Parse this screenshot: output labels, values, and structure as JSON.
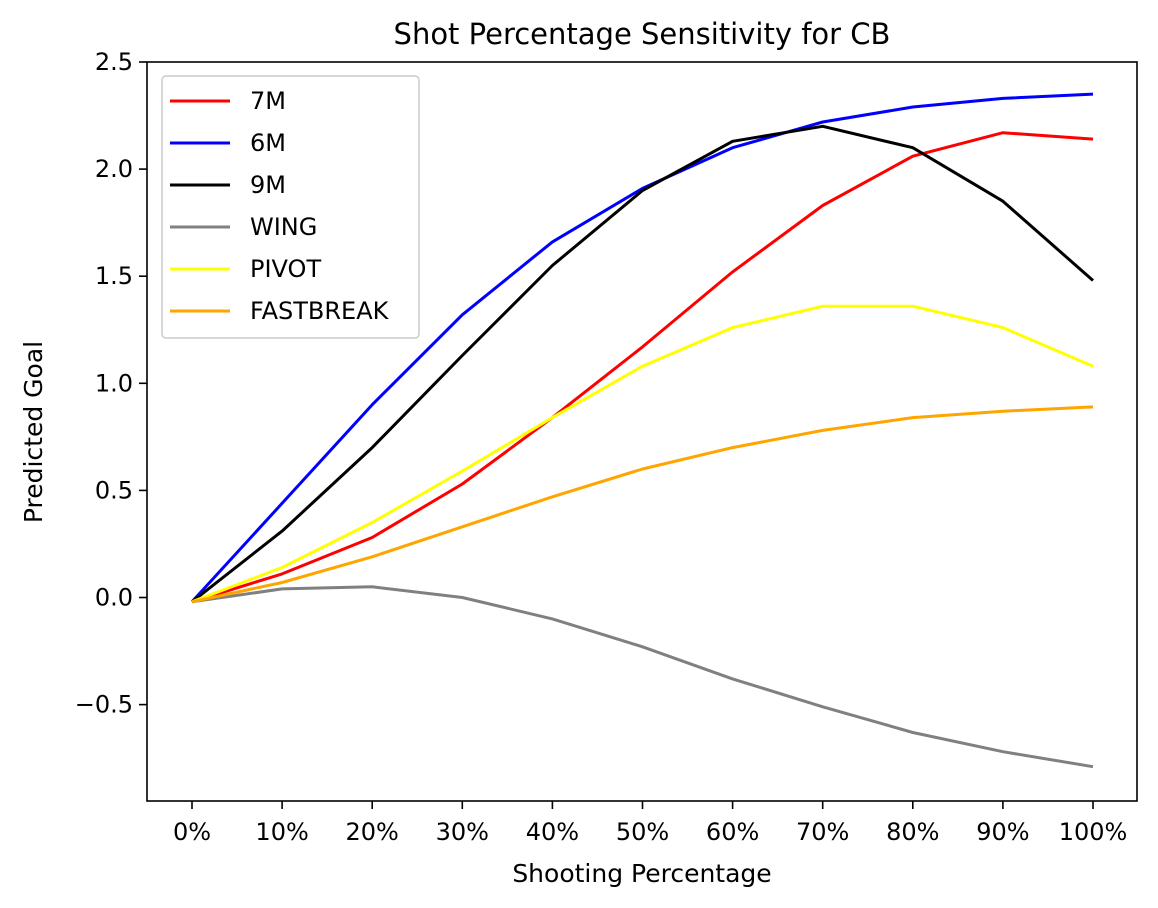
{
  "chart_data": {
    "type": "line",
    "title": "Shot Percentage Sensitivity for CB",
    "xlabel": "Shooting Percentage",
    "ylabel": "Predicted Goal",
    "categories": [
      "0%",
      "10%",
      "20%",
      "30%",
      "40%",
      "50%",
      "60%",
      "70%",
      "80%",
      "90%",
      "100%"
    ],
    "ylim": [
      -0.95,
      2.5
    ],
    "yticks": [
      -0.5,
      0.0,
      0.5,
      1.0,
      1.5,
      2.0,
      2.5
    ],
    "ytick_labels": [
      "−0.5",
      "0.0",
      "0.5",
      "1.0",
      "1.5",
      "2.0",
      "2.5"
    ],
    "grid": false,
    "legend_position": "top-left",
    "series": [
      {
        "name": "7M",
        "color": "#ff0000",
        "values": [
          -0.02,
          0.11,
          0.28,
          0.53,
          0.84,
          1.17,
          1.52,
          1.83,
          2.06,
          2.17,
          2.14
        ]
      },
      {
        "name": "6M",
        "color": "#0000ff",
        "values": [
          -0.02,
          0.44,
          0.9,
          1.32,
          1.66,
          1.91,
          2.1,
          2.22,
          2.29,
          2.33,
          2.35
        ]
      },
      {
        "name": "9M",
        "color": "#000000",
        "values": [
          -0.02,
          0.31,
          0.7,
          1.13,
          1.55,
          1.9,
          2.13,
          2.2,
          2.1,
          1.85,
          1.48
        ]
      },
      {
        "name": "WING",
        "color": "#808080",
        "values": [
          -0.02,
          0.04,
          0.05,
          0.0,
          -0.1,
          -0.23,
          -0.38,
          -0.51,
          -0.63,
          -0.72,
          -0.79
        ]
      },
      {
        "name": "PIVOT",
        "color": "#ffff00",
        "values": [
          -0.02,
          0.14,
          0.35,
          0.59,
          0.84,
          1.08,
          1.26,
          1.36,
          1.36,
          1.26,
          1.08
        ]
      },
      {
        "name": "FASTBREAK",
        "color": "#ffa500",
        "values": [
          -0.02,
          0.07,
          0.19,
          0.33,
          0.47,
          0.6,
          0.7,
          0.78,
          0.84,
          0.87,
          0.89
        ]
      }
    ]
  }
}
